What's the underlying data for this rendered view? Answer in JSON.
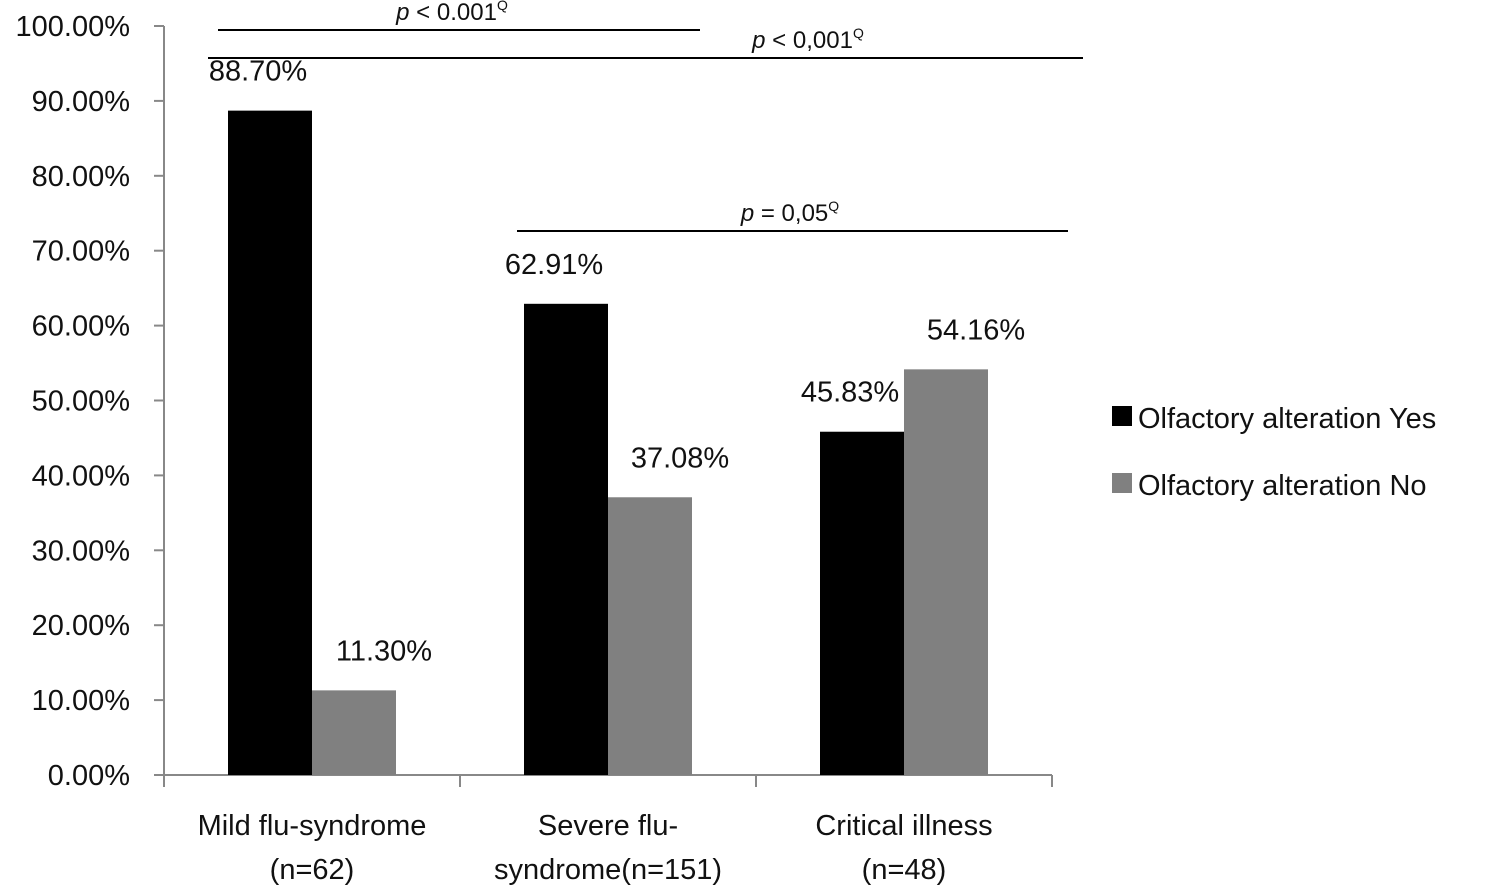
{
  "chart_data": {
    "type": "bar",
    "categories": [
      [
        "Mild flu-syndrome",
        "(n=62)"
      ],
      [
        "Severe flu-",
        "syndrome(n=151)"
      ],
      [
        "Critical illness",
        "(n=48)"
      ]
    ],
    "series": [
      {
        "name": "Olfactory alteration Yes",
        "color": "#000000",
        "values": [
          88.7,
          62.91,
          45.83
        ],
        "labels": [
          "88.70%",
          "62.91%",
          "45.83%"
        ]
      },
      {
        "name": "Olfactory alteration No",
        "color": "#808080",
        "values": [
          11.3,
          37.08,
          54.16
        ],
        "labels": [
          "11.30%",
          "37.08%",
          "54.16%"
        ]
      }
    ],
    "ylim": [
      0,
      100
    ],
    "yticks": [
      0,
      10,
      20,
      30,
      40,
      50,
      60,
      70,
      80,
      90,
      100
    ],
    "ytick_labels": [
      "0.00%",
      "10.00%",
      "20.00%",
      "30.00%",
      "40.00%",
      "50.00%",
      "60.00%",
      "70.00%",
      "80.00%",
      "90.00%",
      "100.00%"
    ],
    "legend_position": "right",
    "grid": false,
    "annotations": [
      {
        "p": "p",
        "rest": " < 0.001",
        "sup": "Q",
        "from": 0,
        "to": 1
      },
      {
        "p": "p",
        "rest": " < 0,001",
        "sup": "Q",
        "from": 0,
        "to": 2
      },
      {
        "p": "p",
        "rest": " = 0,05",
        "sup": "Q",
        "from": 1,
        "to": 2
      }
    ]
  }
}
